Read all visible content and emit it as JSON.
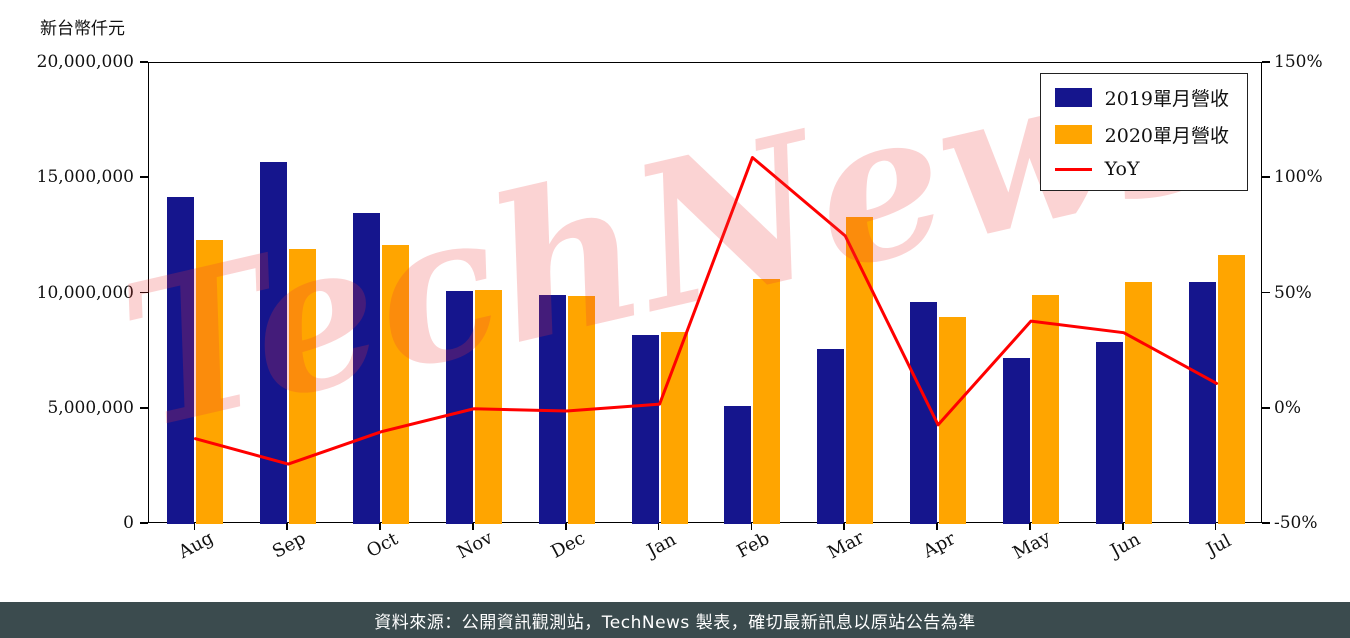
{
  "watermark": {
    "text": "TechNews"
  },
  "footer": {
    "text": "資料來源：公開資訊觀測站，TechNews 製表，確切最新訊息以原站公告為準"
  },
  "colors": {
    "bar_2019": "#15158D",
    "bar_2020": "#FFA500",
    "yoy_line": "#FF0000",
    "footer_bg": "#3B4B4E",
    "watermark": "#EB3737",
    "plot_border": "#000000",
    "background": "#FFFFFF"
  },
  "chart_data": {
    "type": "bar",
    "subtype": "grouped-bars-with-line",
    "title": "",
    "xlabel": "",
    "ylabel": "新台幣仟元",
    "categories": [
      "Aug",
      "Sep",
      "Oct",
      "Nov",
      "Dec",
      "Jan",
      "Feb",
      "Mar",
      "Apr",
      "May",
      "Jun",
      "Jul"
    ],
    "series": [
      {
        "name": "2019單月營收",
        "type": "bar",
        "axis": "left",
        "color": "#15158D",
        "values": [
          14200000,
          15700000,
          13500000,
          10100000,
          9950000,
          8200000,
          5100000,
          7600000,
          9650000,
          7200000,
          7900000,
          10500000
        ]
      },
      {
        "name": "2020單月營收",
        "type": "bar",
        "axis": "left",
        "color": "#FFA500",
        "values": [
          12300000,
          11950000,
          12100000,
          10150000,
          9900000,
          8350000,
          10650000,
          13300000,
          9000000,
          9950000,
          10500000,
          11650000
        ]
      },
      {
        "name": "YoY",
        "type": "line",
        "axis": "right",
        "color": "#FF0000",
        "unit": "%",
        "values": [
          -13,
          -24,
          -10,
          0,
          -1,
          2,
          109,
          75,
          -7,
          38,
          33,
          11
        ]
      }
    ],
    "left_axis": {
      "min": 0,
      "max": 20000000,
      "ticks": [
        0,
        5000000,
        10000000,
        15000000,
        20000000
      ],
      "tick_labels": [
        "0",
        "5,000,000",
        "10,000,000",
        "15,000,000",
        "20,000,000"
      ]
    },
    "right_axis": {
      "min": -50,
      "max": 150,
      "ticks": [
        -50,
        0,
        50,
        100,
        150
      ],
      "tick_labels": [
        "-50%",
        "0%",
        "50%",
        "100%",
        "150%"
      ]
    },
    "legend_position": "upper right",
    "grid": false
  }
}
